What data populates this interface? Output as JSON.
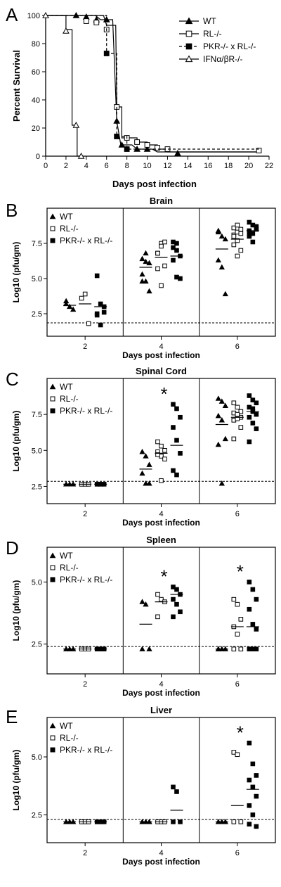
{
  "panels": {
    "A": "A",
    "B": "B",
    "C": "C",
    "D": "D",
    "E": "E"
  },
  "chart_data": [
    {
      "panel": "A",
      "type": "line",
      "title": "",
      "xlabel": "Days post infection",
      "ylabel": "Percent Survival",
      "xlim": [
        0,
        22
      ],
      "ylim": [
        0,
        100
      ],
      "xticks": [
        "0",
        "2",
        "4",
        "6",
        "8",
        "10",
        "12",
        "14",
        "16",
        "18",
        "20",
        "22"
      ],
      "yticks": [
        "0",
        "20",
        "40",
        "60",
        "80",
        "100"
      ],
      "legend_position": "top-right",
      "series": [
        {
          "name": "WT",
          "marker": "triangle-filled",
          "dash": false,
          "steps": [
            [
              0,
              100
            ],
            [
              4.9,
              100
            ],
            [
              5.4,
              97
            ],
            [
              6.6,
              97
            ],
            [
              7,
              25
            ],
            [
              7.4,
              8
            ],
            [
              8.5,
              8
            ],
            [
              9,
              5
            ],
            [
              10.5,
              5
            ],
            [
              11,
              3
            ],
            [
              21,
              3
            ]
          ],
          "markers": [
            [
              3,
              100
            ],
            [
              4,
              99
            ],
            [
              5,
              97
            ],
            [
              6,
              97
            ],
            [
              7,
              25
            ],
            [
              7.5,
              8
            ],
            [
              9,
              5
            ],
            [
              10,
              5
            ],
            [
              13,
              2
            ]
          ]
        },
        {
          "name": "RL-/-",
          "marker": "square-open",
          "dash": false,
          "steps": [
            [
              0,
              100
            ],
            [
              5.7,
              100
            ],
            [
              6,
              93
            ],
            [
              6.9,
              93
            ],
            [
              7,
              35
            ],
            [
              7.5,
              35
            ],
            [
              7.5,
              13
            ],
            [
              9,
              13
            ],
            [
              9,
              10
            ],
            [
              10,
              10
            ],
            [
              10,
              8
            ],
            [
              11,
              8
            ],
            [
              11,
              5
            ],
            [
              12,
              5
            ],
            [
              12,
              3
            ],
            [
              21,
              3
            ],
            [
              21,
              4
            ]
          ],
          "markers": [
            [
              4,
              96
            ],
            [
              5,
              95
            ],
            [
              6,
              90
            ],
            [
              7,
              35
            ],
            [
              8,
              13
            ],
            [
              9,
              10
            ],
            [
              10,
              8
            ],
            [
              11,
              6
            ],
            [
              12,
              5
            ],
            [
              21,
              4
            ]
          ]
        },
        {
          "name": "PKR-/- x RL-/-",
          "marker": "square-filled",
          "dash": true,
          "steps": [
            [
              0,
              100
            ],
            [
              6,
              100
            ],
            [
              6,
              73
            ],
            [
              7,
              73
            ],
            [
              7,
              14
            ],
            [
              8,
              14
            ],
            [
              8,
              5
            ],
            [
              21,
              5
            ]
          ],
          "markers": [
            [
              6,
              73
            ],
            [
              7,
              14
            ],
            [
              8,
              5
            ]
          ]
        },
        {
          "name": "IFNα/βR-/-",
          "marker": "triangle-open",
          "dash": false,
          "steps": [
            [
              0,
              100
            ],
            [
              2,
              100
            ],
            [
              2,
              90
            ],
            [
              2.6,
              90
            ],
            [
              2.6,
              22
            ],
            [
              3.1,
              22
            ],
            [
              3.1,
              0
            ],
            [
              3.6,
              0
            ]
          ],
          "markers": [
            [
              0,
              100
            ],
            [
              2,
              89
            ],
            [
              3,
              22
            ],
            [
              3.5,
              0
            ]
          ]
        }
      ]
    },
    {
      "panel": "B",
      "type": "scatter",
      "title": "Brain",
      "xlabel": "Days post infection",
      "ylabel": "Log10 (pfu/gm)",
      "categories": [
        "2",
        "4",
        "6"
      ],
      "yticks": [
        2.5,
        5.0,
        7.5
      ],
      "ytick_labels": [
        "2.5",
        "5.0",
        "7.5"
      ],
      "ylim": [
        0.9,
        10.0
      ],
      "detection_limit": 1.85,
      "legend_position": "top-left",
      "asterisks": [],
      "series": [
        {
          "name": "WT",
          "marker": "triangle-filled",
          "points": [
            [
              [
                3.4,
                3.0,
                2.8,
                3.2
              ]
            ],
            [
              [
                6.4,
                6.2,
                6.1,
                5.3,
                4.8,
                4.1,
                4.8,
                6.8
              ]
            ],
            [
              [
                8.4,
                8.0,
                7.8,
                6.3,
                5.8,
                3.9,
                8.3
              ]
            ]
          ],
          "means": [
            3.1,
            5.8,
            7.1
          ]
        },
        {
          "name": "RL-/-",
          "marker": "square-open",
          "points": [
            [
              [
                3.6,
                3.9,
                1.8
              ]
            ],
            [
              [
                6.8,
                7.5,
                7.6,
                5.7,
                4.5,
                5.9,
                6.8,
                7.3
              ]
            ],
            [
              [
                8.1,
                8.3,
                8.5,
                8.6,
                8.8,
                8.2,
                8.0,
                7.7,
                7.0,
                7.4,
                6.6
              ]
            ]
          ],
          "means": [
            3.2,
            6.5,
            7.8
          ]
        },
        {
          "name": "PKR-/- x RL-/-",
          "marker": "square-filled",
          "points": [
            [
              [
                5.2,
                3.2,
                3.0,
                2.4,
                1.7,
                2.6,
                2.5
              ]
            ],
            [
              [
                7.6,
                7.5,
                6.6,
                6.3,
                5.1,
                5.0,
                7.2,
                7.0
              ]
            ],
            [
              [
                9.0,
                8.8,
                8.6,
                8.4,
                8.2,
                8.7,
                8.0,
                7.6,
                8.5,
                8.1
              ]
            ]
          ],
          "means": [
            3.0,
            6.6,
            8.4
          ]
        }
      ]
    },
    {
      "panel": "C",
      "type": "scatter",
      "title": "Spinal Cord",
      "xlabel": "Days post infection",
      "ylabel": "Log10 (pfu/gm)",
      "categories": [
        "2",
        "4",
        "6"
      ],
      "yticks": [
        2.5,
        5.0,
        7.5
      ],
      "ytick_labels": [
        "2.5",
        "5.0",
        "7.5"
      ],
      "ylim": [
        1.3,
        10.0
      ],
      "detection_limit": 2.85,
      "legend_position": "top-left",
      "asterisks": [
        1
      ],
      "series": [
        {
          "name": "WT",
          "marker": "triangle-filled",
          "points": [
            [
              [
                2.65,
                2.65,
                2.65
              ]
            ],
            [
              [
                4.9,
                4.6,
                4.0,
                3.4,
                2.7,
                2.7
              ]
            ],
            [
              [
                8.6,
                8.4,
                8.1,
                7.4,
                7.1,
                5.8,
                5.4,
                2.7
              ]
            ]
          ],
          "means": [
            2.65,
            3.7,
            6.8
          ]
        },
        {
          "name": "RL-/-",
          "marker": "square-open",
          "points": [
            [
              [
                2.65,
                2.65,
                2.65
              ]
            ],
            [
              [
                5.6,
                5.3,
                5.0,
                4.9,
                4.6,
                4.4,
                4.7,
                2.9
              ]
            ],
            [
              [
                8.3,
                8.0,
                7.7,
                7.6,
                7.4,
                7.3,
                7.1,
                7.5,
                6.6,
                5.8,
                7.2
              ]
            ]
          ],
          "means": [
            2.65,
            4.8,
            7.3
          ]
        },
        {
          "name": "PKR-/- x RL-/-",
          "marker": "square-filled",
          "points": [
            [
              [
                2.65,
                2.65,
                2.65
              ]
            ],
            [
              [
                8.2,
                7.9,
                7.3,
                6.6,
                5.7,
                4.8,
                3.6,
                3.3
              ]
            ],
            [
              [
                8.8,
                8.5,
                8.3,
                8.0,
                7.7,
                7.5,
                7.3,
                6.9,
                6.5,
                5.6,
                7.9
              ]
            ]
          ],
          "means": [
            2.65,
            5.35,
            7.7
          ]
        }
      ]
    },
    {
      "panel": "D",
      "type": "scatter",
      "title": "Spleen",
      "xlabel": "Days post infection",
      "ylabel": "Log10 (pfu/gm)",
      "categories": [
        "2",
        "4",
        "6"
      ],
      "yticks": [
        2.5,
        5.0
      ],
      "ytick_labels": [
        "2.5",
        "5.0"
      ],
      "ylim": [
        1.3,
        6.4
      ],
      "detection_limit": 2.4,
      "legend_position": "top-left",
      "asterisks": [
        1,
        2
      ],
      "series": [
        {
          "name": "WT",
          "marker": "triangle-filled",
          "points": [
            [
              [
                2.3,
                2.3,
                2.3
              ]
            ],
            [
              [
                4.2,
                4.1,
                2.3,
                2.3
              ]
            ],
            [
              [
                2.3,
                2.3,
                2.3,
                2.3
              ]
            ]
          ],
          "means": [
            2.3,
            3.3,
            2.3
          ]
        },
        {
          "name": "RL-/-",
          "marker": "square-open",
          "points": [
            [
              [
                2.3,
                2.3,
                2.3
              ]
            ],
            [
              [
                4.5,
                4.3,
                4.2,
                3.6
              ]
            ],
            [
              [
                4.3,
                4.1,
                3.5,
                3.2,
                2.9,
                2.3,
                2.3
              ]
            ]
          ],
          "means": [
            2.3,
            4.2,
            3.2
          ]
        },
        {
          "name": "PKR-/- x RL-/-",
          "marker": "square-filled",
          "points": [
            [
              [
                2.3,
                2.3,
                2.3
              ]
            ],
            [
              [
                4.8,
                4.7,
                4.5,
                4.3,
                4.1,
                3.8,
                3.6
              ]
            ],
            [
              [
                5.0,
                4.7,
                4.3,
                3.9,
                3.3,
                3.1,
                2.3,
                2.3,
                2.3
              ]
            ]
          ],
          "means": [
            2.3,
            4.5,
            3.2
          ]
        }
      ]
    },
    {
      "panel": "E",
      "type": "scatter",
      "title": "Liver",
      "xlabel": "Days post infection",
      "ylabel": "Log10 (pfu/gm)",
      "categories": [
        "2",
        "4",
        "6"
      ],
      "yticks": [
        2.5,
        5.0
      ],
      "ytick_labels": [
        "2.5",
        "5.0"
      ],
      "ylim": [
        1.3,
        6.7
      ],
      "detection_limit": 2.3,
      "legend_position": "top-left",
      "asterisks": [
        2
      ],
      "series": [
        {
          "name": "WT",
          "marker": "triangle-filled",
          "points": [
            [
              [
                2.2,
                2.2,
                2.2
              ]
            ],
            [
              [
                2.2,
                2.2,
                2.2
              ]
            ],
            [
              [
                2.2,
                2.2,
                2.2
              ]
            ]
          ],
          "means": [
            2.2,
            2.2,
            2.2
          ]
        },
        {
          "name": "RL-/-",
          "marker": "square-open",
          "points": [
            [
              [
                2.2,
                2.2,
                2.2
              ]
            ],
            [
              [
                2.2,
                2.2,
                2.2
              ]
            ],
            [
              [
                5.2,
                5.1,
                2.2,
                2.2
              ]
            ]
          ],
          "means": [
            2.2,
            2.2,
            2.9
          ]
        },
        {
          "name": "PKR-/- x RL-/-",
          "marker": "square-filled",
          "points": [
            [
              [
                2.2,
                2.2,
                2.2
              ]
            ],
            [
              [
                3.7,
                3.5,
                2.2,
                2.2
              ]
            ],
            [
              [
                5.6,
                4.7,
                4.2,
                4.0,
                3.7,
                3.3,
                2.9,
                2.5,
                2.0,
                2.1
              ]
            ]
          ],
          "means": [
            2.2,
            2.7,
            3.6
          ]
        }
      ]
    }
  ]
}
